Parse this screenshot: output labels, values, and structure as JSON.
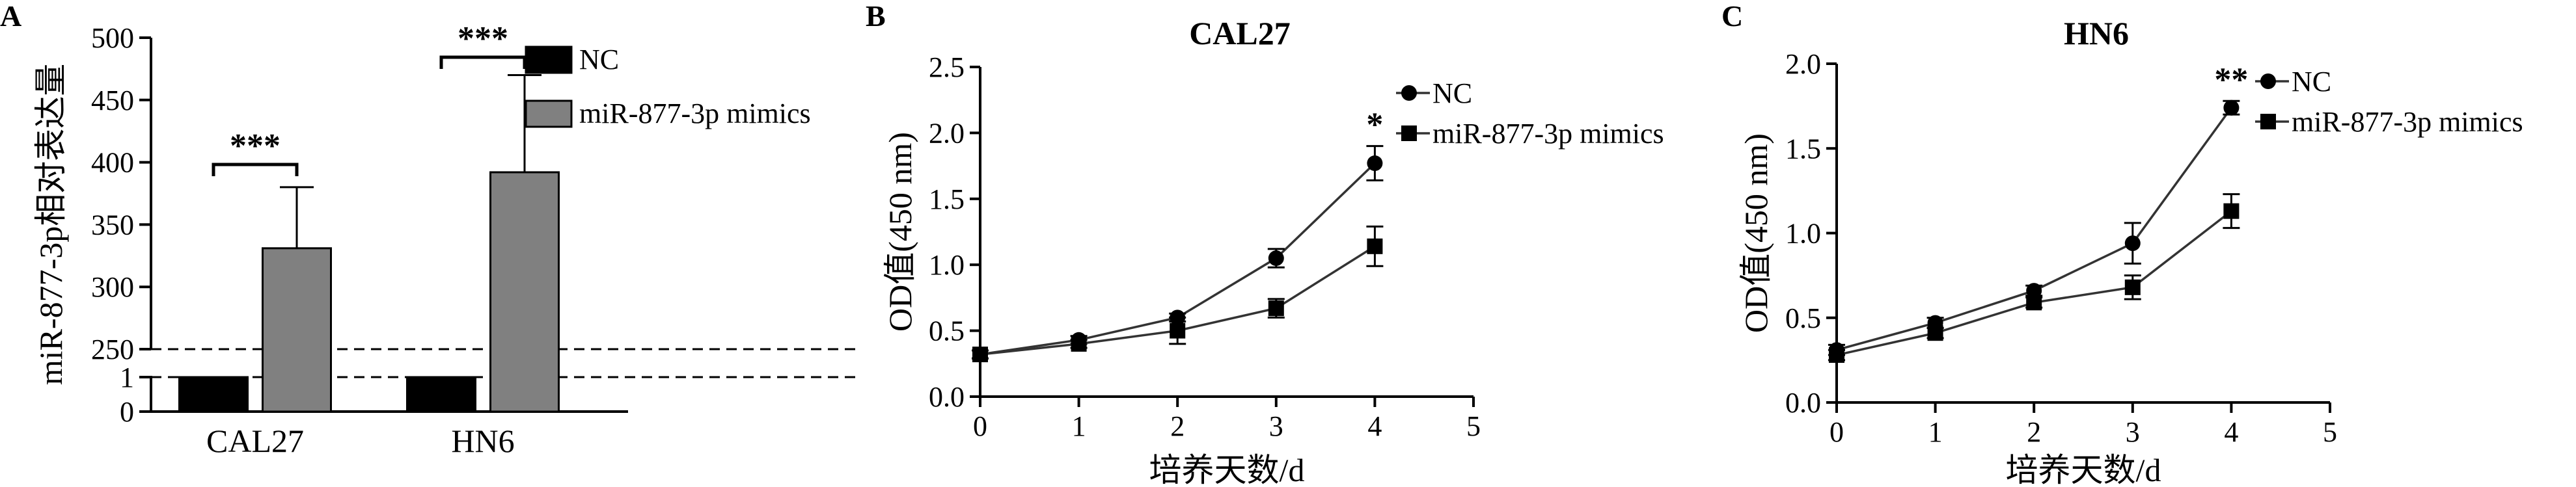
{
  "panels": [
    {
      "letter": "A",
      "chart_data": {
        "type": "bar",
        "categories": [
          "CAL27",
          "HN6"
        ],
        "series": [
          {
            "name": "NC",
            "values": [
              1,
              1
            ],
            "errors": [
              0.02,
              0.02
            ],
            "color": "#000000"
          },
          {
            "name": "miR-877-3p mimics",
            "values": [
              331,
              392
            ],
            "errors": [
              49,
              78
            ],
            "color": "#808080"
          }
        ],
        "title": "",
        "xlabel": "",
        "ylabel": "miR-877-3p相对表达量",
        "ylim": [
          0,
          500
        ],
        "broken_axis": {
          "lower": [
            0,
            1
          ],
          "upper": [
            250,
            500
          ]
        },
        "y_ticks_upper": [
          250,
          300,
          350,
          400,
          450,
          500
        ],
        "y_ticks_lower": [
          0,
          1
        ],
        "significance": [
          "***",
          "***"
        ],
        "legend_position": "top-right",
        "grid": false
      }
    },
    {
      "letter": "B",
      "chart_data": {
        "type": "line",
        "title": "CAL27",
        "xlabel": "培养天数/d",
        "ylabel": "OD值(450 nm)",
        "x": [
          0,
          1,
          2,
          3,
          4
        ],
        "series": [
          {
            "name": "NC",
            "marker": "circle",
            "values": [
              0.32,
              0.43,
              0.6,
              1.05,
              1.77
            ],
            "errors": [
              0.03,
              0.03,
              0.03,
              0.07,
              0.13
            ]
          },
          {
            "name": "miR-877-3p mimics",
            "marker": "square",
            "values": [
              0.32,
              0.4,
              0.5,
              0.67,
              1.14
            ],
            "errors": [
              0.03,
              0.03,
              0.1,
              0.07,
              0.15
            ]
          }
        ],
        "xlim": [
          0,
          5
        ],
        "ylim": [
          0,
          2.5
        ],
        "x_ticks": [
          0,
          1,
          2,
          3,
          4,
          5
        ],
        "y_ticks": [
          "0.0",
          "0.5",
          "1.0",
          "1.5",
          "2.0",
          "2.5"
        ],
        "significance": {
          "x": 4,
          "label": "*"
        },
        "legend_position": "top-right",
        "grid": false
      }
    },
    {
      "letter": "C",
      "chart_data": {
        "type": "line",
        "title": "HN6",
        "xlabel": "培养天数/d",
        "ylabel": "OD值(450 nm)",
        "x": [
          0,
          1,
          2,
          3,
          4
        ],
        "series": [
          {
            "name": "NC",
            "marker": "circle",
            "values": [
              0.31,
              0.47,
              0.66,
              0.94,
              1.74
            ],
            "errors": [
              0.03,
              0.03,
              0.03,
              0.12,
              0.04
            ]
          },
          {
            "name": "miR-877-3p mimics",
            "marker": "square",
            "values": [
              0.28,
              0.41,
              0.59,
              0.68,
              1.13
            ],
            "errors": [
              0.03,
              0.03,
              0.03,
              0.07,
              0.1
            ]
          }
        ],
        "xlim": [
          0,
          5
        ],
        "ylim": [
          0,
          2.0
        ],
        "x_ticks": [
          0,
          1,
          2,
          3,
          4,
          5
        ],
        "y_ticks": [
          "0.0",
          "0.5",
          "1.0",
          "1.5",
          "2.0"
        ],
        "significance": {
          "x": 4,
          "label": "**"
        },
        "legend_position": "top-right",
        "grid": false
      }
    }
  ]
}
